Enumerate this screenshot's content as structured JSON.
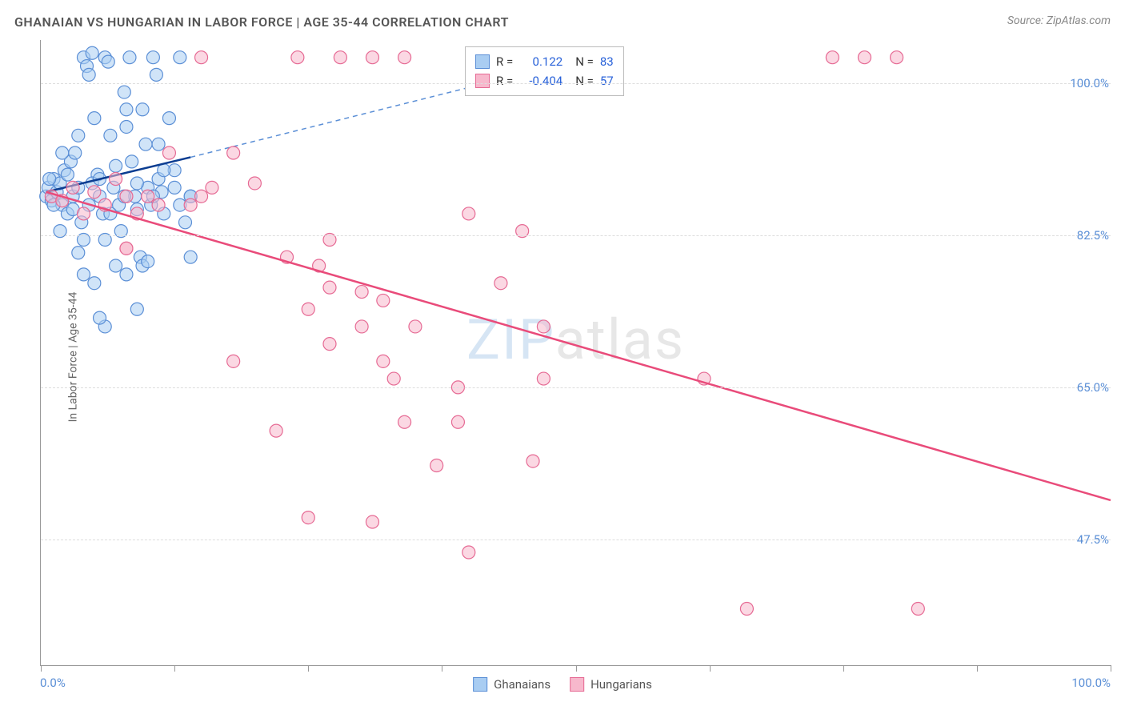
{
  "title": "GHANAIAN VS HUNGARIAN IN LABOR FORCE | AGE 35-44 CORRELATION CHART",
  "source": "Source: ZipAtlas.com",
  "watermark_part1": "ZIP",
  "watermark_part2": "atlas",
  "chart": {
    "type": "scatter",
    "y_label": "In Labor Force | Age 35-44",
    "x_min": 0.0,
    "x_max": 100.0,
    "y_min": 33.0,
    "y_max": 105.0,
    "x_tick_labels": [
      "0.0%",
      "100.0%"
    ],
    "x_tick_positions": [
      0,
      12.5,
      25,
      37.5,
      50,
      62.5,
      75,
      87.5,
      100
    ],
    "y_tick_labels": [
      "47.5%",
      "65.0%",
      "82.5%",
      "100.0%"
    ],
    "y_tick_positions": [
      47.5,
      65.0,
      82.5,
      100.0
    ],
    "background_color": "#ffffff",
    "grid_color": "#dddddd",
    "axis_color": "#999999",
    "marker_radius": 8,
    "marker_opacity": 0.55,
    "marker_stroke_width": 1.2,
    "series": [
      {
        "name": "Ghanaians",
        "color_fill": "#a9cdf2",
        "color_stroke": "#5b8fd6",
        "R": "0.122",
        "N": "83",
        "trend": {
          "x1": 0.5,
          "y1": 87.5,
          "x2": 14,
          "y2": 91.5,
          "color": "#0b3d91",
          "width": 2.5,
          "dash": ""
        },
        "trend_ext": {
          "x1": 14,
          "y1": 91.5,
          "x2": 48,
          "y2": 102,
          "color": "#5b8fd6",
          "width": 1.5,
          "dash": "6 5"
        },
        "points": [
          [
            0.5,
            87
          ],
          [
            0.7,
            88
          ],
          [
            1,
            86.5
          ],
          [
            1.2,
            89
          ],
          [
            1.5,
            87.5
          ],
          [
            1.8,
            88.5
          ],
          [
            2,
            86
          ],
          [
            2.2,
            90
          ],
          [
            2.5,
            85
          ],
          [
            2.8,
            91
          ],
          [
            3,
            87
          ],
          [
            3.2,
            92
          ],
          [
            3.5,
            88
          ],
          [
            3.8,
            84
          ],
          [
            4,
            103
          ],
          [
            4.3,
            102
          ],
          [
            4.5,
            101
          ],
          [
            4.8,
            103.5
          ],
          [
            5,
            96
          ],
          [
            5.3,
            89.5
          ],
          [
            5.5,
            87
          ],
          [
            5.8,
            85
          ],
          [
            6,
            103
          ],
          [
            6.3,
            102.5
          ],
          [
            6.5,
            94
          ],
          [
            6.8,
            88
          ],
          [
            7,
            90.5
          ],
          [
            7.3,
            86
          ],
          [
            7.5,
            83
          ],
          [
            7.8,
            99
          ],
          [
            8,
            97
          ],
          [
            8.3,
            103
          ],
          [
            8.5,
            91
          ],
          [
            8.8,
            87
          ],
          [
            9,
            85.5
          ],
          [
            9.3,
            80
          ],
          [
            9.5,
            79
          ],
          [
            9.8,
            93
          ],
          [
            10,
            88
          ],
          [
            10.3,
            86
          ],
          [
            10.5,
            103
          ],
          [
            10.8,
            101
          ],
          [
            11,
            89
          ],
          [
            11.3,
            87.5
          ],
          [
            11.5,
            85
          ],
          [
            12,
            96
          ],
          [
            12.5,
            90
          ],
          [
            13,
            86
          ],
          [
            13.5,
            84
          ],
          [
            14,
            87
          ],
          [
            3.5,
            80.5
          ],
          [
            4,
            78
          ],
          [
            5,
            77
          ],
          [
            6,
            82
          ],
          [
            7,
            79
          ],
          [
            8,
            78
          ],
          [
            9,
            74
          ],
          [
            10,
            79.5
          ],
          [
            6,
            72
          ],
          [
            14,
            80
          ],
          [
            5.5,
            73
          ],
          [
            4,
            82
          ],
          [
            3,
            85.5
          ],
          [
            2.5,
            89.5
          ],
          [
            1.8,
            83
          ],
          [
            1.2,
            86
          ],
          [
            0.8,
            89
          ],
          [
            2,
            92
          ],
          [
            3.5,
            94
          ],
          [
            4.8,
            88.5
          ],
          [
            6.5,
            85
          ],
          [
            7.8,
            87
          ],
          [
            9,
            88.5
          ],
          [
            10.5,
            87
          ],
          [
            11.5,
            90
          ],
          [
            12.5,
            88
          ],
          [
            13,
            103
          ],
          [
            14,
            87
          ],
          [
            4.5,
            86
          ],
          [
            5.5,
            89
          ],
          [
            8,
            95
          ],
          [
            9.5,
            97
          ],
          [
            11,
            93
          ]
        ]
      },
      {
        "name": "Hungarians",
        "color_fill": "#f7b8cc",
        "color_stroke": "#e66a94",
        "R": "-0.404",
        "N": "57",
        "trend": {
          "x1": 0.5,
          "y1": 87.5,
          "x2": 100,
          "y2": 52,
          "color": "#e94b7a",
          "width": 2.5,
          "dash": ""
        },
        "points": [
          [
            1,
            87
          ],
          [
            2,
            86.5
          ],
          [
            3,
            88
          ],
          [
            4,
            85
          ],
          [
            5,
            87.5
          ],
          [
            6,
            86
          ],
          [
            7,
            89
          ],
          [
            8,
            87
          ],
          [
            9,
            85
          ],
          [
            10,
            87
          ],
          [
            11,
            86
          ],
          [
            8,
            81
          ],
          [
            12,
            92
          ],
          [
            14,
            86
          ],
          [
            15,
            103
          ],
          [
            18,
            92
          ],
          [
            24,
            103
          ],
          [
            28,
            103
          ],
          [
            31,
            103
          ],
          [
            34,
            103
          ],
          [
            15,
            87
          ],
          [
            8,
            81
          ],
          [
            16,
            88
          ],
          [
            30,
            76
          ],
          [
            23,
            80
          ],
          [
            27,
            82
          ],
          [
            32,
            75
          ],
          [
            40,
            85
          ],
          [
            43,
            77
          ],
          [
            45,
            83
          ],
          [
            25,
            74
          ],
          [
            26,
            79
          ],
          [
            27,
            70
          ],
          [
            30,
            72
          ],
          [
            32,
            68
          ],
          [
            33,
            66
          ],
          [
            34,
            61
          ],
          [
            37,
            56
          ],
          [
            39,
            61
          ],
          [
            39,
            65
          ],
          [
            40,
            46
          ],
          [
            46,
            56.5
          ],
          [
            47,
            66
          ],
          [
            47,
            72
          ],
          [
            62,
            66
          ],
          [
            74,
            103
          ],
          [
            77,
            103
          ],
          [
            80,
            103
          ],
          [
            31,
            49.5
          ],
          [
            25,
            50
          ],
          [
            66,
            39.5
          ],
          [
            82,
            39.5
          ],
          [
            22,
            60
          ],
          [
            18,
            68
          ],
          [
            27,
            76.5
          ],
          [
            20,
            88.5
          ],
          [
            35,
            72
          ]
        ]
      }
    ]
  },
  "legend_top": {
    "rows": [
      {
        "swatch_fill": "#a9cdf2",
        "swatch_stroke": "#5b8fd6",
        "r_label": "R =",
        "r_value": "0.122",
        "n_label": "N =",
        "n_value": "83"
      },
      {
        "swatch_fill": "#f7b8cc",
        "swatch_stroke": "#e66a94",
        "r_label": "R =",
        "r_value": "-0.404",
        "n_label": "N =",
        "n_value": "57"
      }
    ]
  },
  "legend_bottom": {
    "items": [
      {
        "swatch_fill": "#a9cdf2",
        "swatch_stroke": "#5b8fd6",
        "label": "Ghanaians"
      },
      {
        "swatch_fill": "#f7b8cc",
        "swatch_stroke": "#e66a94",
        "label": "Hungarians"
      }
    ]
  }
}
